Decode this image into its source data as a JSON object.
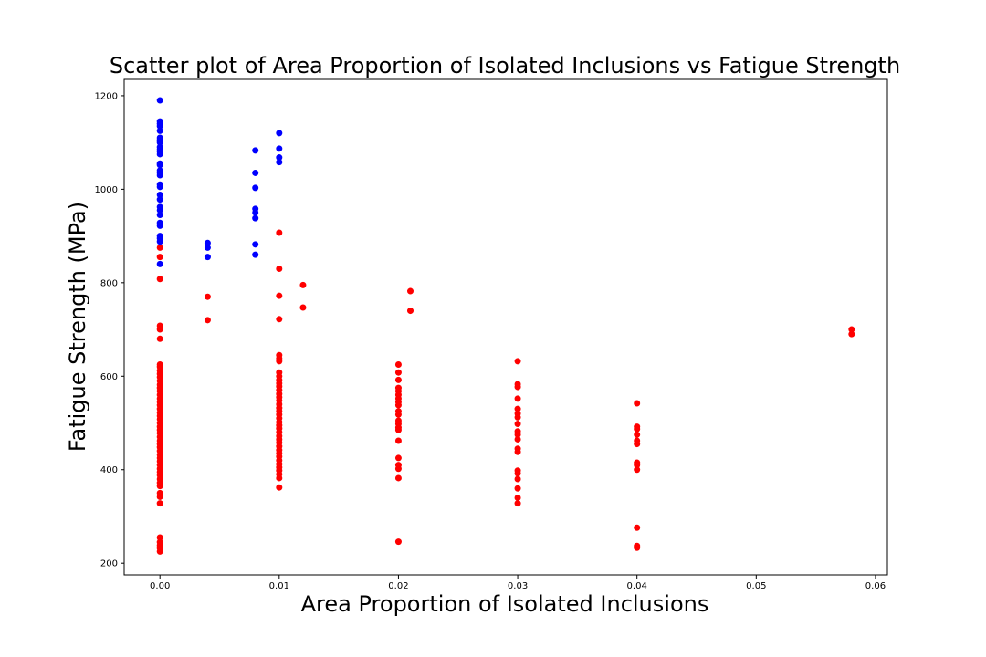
{
  "chart_data": {
    "type": "scatter",
    "title": "Scatter plot of Area Proportion of Isolated Inclusions vs Fatigue Strength",
    "xlabel": "Area Proportion of Isolated Inclusions",
    "ylabel": "Fatigue Strength (MPa)",
    "xlim": [
      -0.003,
      0.061
    ],
    "ylim": [
      175,
      1235
    ],
    "xticks": [
      "0.00",
      "0.01",
      "0.02",
      "0.03",
      "0.04",
      "0.05",
      "0.06"
    ],
    "yticks": [
      "200",
      "400",
      "600",
      "800",
      "1000",
      "1200"
    ],
    "colors": {
      "blue": "#0000ff",
      "red": "#ff0000"
    },
    "series": [
      {
        "color": "#0000ff",
        "points": [
          [
            0,
            1190
          ],
          [
            0,
            1145
          ],
          [
            0,
            1140
          ],
          [
            0,
            1135
          ],
          [
            0,
            1125
          ],
          [
            0,
            1110
          ],
          [
            0,
            1105
          ],
          [
            0,
            1100
          ],
          [
            0,
            1090
          ],
          [
            0,
            1085
          ],
          [
            0,
            1080
          ],
          [
            0,
            1075
          ],
          [
            0,
            1055
          ],
          [
            0,
            1052
          ],
          [
            0,
            1040
          ],
          [
            0,
            1035
          ],
          [
            0,
            1030
          ],
          [
            0,
            1010
          ],
          [
            0,
            1005
          ],
          [
            0,
            988
          ],
          [
            0,
            978
          ],
          [
            0,
            962
          ],
          [
            0,
            955
          ],
          [
            0,
            945
          ],
          [
            0,
            928
          ],
          [
            0,
            922
          ],
          [
            0,
            900
          ],
          [
            0,
            895
          ],
          [
            0,
            888
          ],
          [
            0,
            840
          ],
          [
            0.004,
            885
          ],
          [
            0.004,
            875
          ],
          [
            0.004,
            855
          ],
          [
            0.008,
            1083
          ],
          [
            0.008,
            1035
          ],
          [
            0.008,
            1003
          ],
          [
            0.008,
            958
          ],
          [
            0.008,
            950
          ],
          [
            0.008,
            938
          ],
          [
            0.008,
            882
          ],
          [
            0.008,
            860
          ],
          [
            0.01,
            1120
          ],
          [
            0.01,
            1087
          ],
          [
            0.01,
            1068
          ],
          [
            0.01,
            1058
          ]
        ]
      },
      {
        "color": "#ff0000",
        "points": [
          [
            0,
            875
          ],
          [
            0,
            855
          ],
          [
            0,
            808
          ],
          [
            0,
            708
          ],
          [
            0,
            700
          ],
          [
            0,
            680
          ],
          [
            0,
            625
          ],
          [
            0,
            620
          ],
          [
            0,
            612
          ],
          [
            0,
            605
          ],
          [
            0,
            598
          ],
          [
            0,
            590
          ],
          [
            0,
            582
          ],
          [
            0,
            575
          ],
          [
            0,
            568
          ],
          [
            0,
            560
          ],
          [
            0,
            552
          ],
          [
            0,
            545
          ],
          [
            0,
            538
          ],
          [
            0,
            530
          ],
          [
            0,
            522
          ],
          [
            0,
            515
          ],
          [
            0,
            508
          ],
          [
            0,
            500
          ],
          [
            0,
            492
          ],
          [
            0,
            485
          ],
          [
            0,
            478
          ],
          [
            0,
            470
          ],
          [
            0,
            462
          ],
          [
            0,
            455
          ],
          [
            0,
            448
          ],
          [
            0,
            440
          ],
          [
            0,
            432
          ],
          [
            0,
            425
          ],
          [
            0,
            418
          ],
          [
            0,
            410
          ],
          [
            0,
            402
          ],
          [
            0,
            395
          ],
          [
            0,
            388
          ],
          [
            0,
            380
          ],
          [
            0,
            372
          ],
          [
            0,
            365
          ],
          [
            0,
            350
          ],
          [
            0,
            342
          ],
          [
            0,
            328
          ],
          [
            0,
            255
          ],
          [
            0,
            245
          ],
          [
            0,
            238
          ],
          [
            0,
            232
          ],
          [
            0,
            225
          ],
          [
            0.004,
            770
          ],
          [
            0.004,
            720
          ],
          [
            0.01,
            907
          ],
          [
            0.01,
            830
          ],
          [
            0.01,
            772
          ],
          [
            0.01,
            722
          ],
          [
            0.01,
            645
          ],
          [
            0.01,
            638
          ],
          [
            0.01,
            632
          ],
          [
            0.01,
            608
          ],
          [
            0.01,
            600
          ],
          [
            0.01,
            592
          ],
          [
            0.01,
            585
          ],
          [
            0.01,
            578
          ],
          [
            0.01,
            570
          ],
          [
            0.01,
            562
          ],
          [
            0.01,
            555
          ],
          [
            0.01,
            548
          ],
          [
            0.01,
            540
          ],
          [
            0.01,
            532
          ],
          [
            0.01,
            525
          ],
          [
            0.01,
            518
          ],
          [
            0.01,
            510
          ],
          [
            0.01,
            502
          ],
          [
            0.01,
            495
          ],
          [
            0.01,
            488
          ],
          [
            0.01,
            480
          ],
          [
            0.01,
            472
          ],
          [
            0.01,
            465
          ],
          [
            0.01,
            458
          ],
          [
            0.01,
            450
          ],
          [
            0.01,
            442
          ],
          [
            0.01,
            435
          ],
          [
            0.01,
            428
          ],
          [
            0.01,
            420
          ],
          [
            0.01,
            412
          ],
          [
            0.01,
            405
          ],
          [
            0.01,
            398
          ],
          [
            0.01,
            390
          ],
          [
            0.01,
            382
          ],
          [
            0.01,
            362
          ],
          [
            0.012,
            795
          ],
          [
            0.012,
            747
          ],
          [
            0.02,
            625
          ],
          [
            0.02,
            608
          ],
          [
            0.02,
            592
          ],
          [
            0.02,
            575
          ],
          [
            0.02,
            568
          ],
          [
            0.02,
            560
          ],
          [
            0.02,
            552
          ],
          [
            0.02,
            545
          ],
          [
            0.02,
            538
          ],
          [
            0.02,
            525
          ],
          [
            0.02,
            518
          ],
          [
            0.02,
            505
          ],
          [
            0.02,
            498
          ],
          [
            0.02,
            490
          ],
          [
            0.02,
            485
          ],
          [
            0.02,
            462
          ],
          [
            0.02,
            425
          ],
          [
            0.02,
            410
          ],
          [
            0.02,
            402
          ],
          [
            0.02,
            382
          ],
          [
            0.02,
            246
          ],
          [
            0.021,
            782
          ],
          [
            0.021,
            740
          ],
          [
            0.03,
            632
          ],
          [
            0.03,
            583
          ],
          [
            0.03,
            577
          ],
          [
            0.03,
            552
          ],
          [
            0.03,
            530
          ],
          [
            0.03,
            520
          ],
          [
            0.03,
            512
          ],
          [
            0.03,
            498
          ],
          [
            0.03,
            482
          ],
          [
            0.03,
            475
          ],
          [
            0.03,
            465
          ],
          [
            0.03,
            445
          ],
          [
            0.03,
            438
          ],
          [
            0.03,
            398
          ],
          [
            0.03,
            392
          ],
          [
            0.03,
            380
          ],
          [
            0.03,
            360
          ],
          [
            0.03,
            340
          ],
          [
            0.03,
            328
          ],
          [
            0.04,
            542
          ],
          [
            0.04,
            492
          ],
          [
            0.04,
            487
          ],
          [
            0.04,
            475
          ],
          [
            0.04,
            462
          ],
          [
            0.04,
            455
          ],
          [
            0.04,
            415
          ],
          [
            0.04,
            410
          ],
          [
            0.04,
            400
          ],
          [
            0.04,
            276
          ],
          [
            0.04,
            237
          ],
          [
            0.04,
            233
          ],
          [
            0.058,
            700
          ],
          [
            0.058,
            690
          ]
        ]
      }
    ]
  }
}
